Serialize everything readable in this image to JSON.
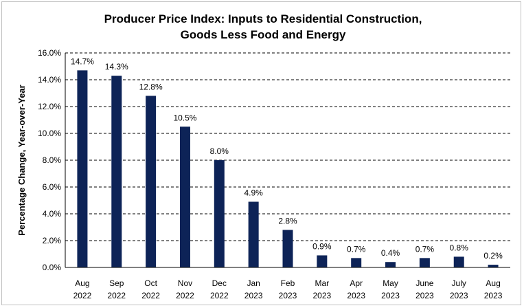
{
  "chart_data": {
    "type": "bar",
    "title": "Producer Price Index: Inputs to Residential Construction,",
    "subtitle": "Goods Less Food and Energy",
    "xlabel": "",
    "ylabel": "Percentage Change, Year-over-Year",
    "ylim": [
      0,
      16
    ],
    "y_ticks": [
      "0.0%",
      "2.0%",
      "4.0%",
      "6.0%",
      "8.0%",
      "10.0%",
      "12.0%",
      "14.0%",
      "16.0%"
    ],
    "grid": "horizontal-dashed",
    "legend": "none",
    "bar_color": "#0d2357",
    "categories": [
      [
        "Aug",
        "2022"
      ],
      [
        "Sep",
        "2022"
      ],
      [
        "Oct",
        "2022"
      ],
      [
        "Nov",
        "2022"
      ],
      [
        "Dec",
        "2022"
      ],
      [
        "Jan",
        "2023"
      ],
      [
        "Feb",
        "2023"
      ],
      [
        "Mar",
        "2023"
      ],
      [
        "Apr",
        "2023"
      ],
      [
        "May",
        "2023"
      ],
      [
        "June",
        "2023"
      ],
      [
        "July",
        "2023"
      ],
      [
        "Aug",
        "2023"
      ]
    ],
    "values": [
      14.7,
      14.3,
      12.8,
      10.5,
      8.0,
      4.9,
      2.8,
      0.9,
      0.7,
      0.4,
      0.7,
      0.8,
      0.2
    ],
    "data_labels": [
      "14.7%",
      "14.3%",
      "12.8%",
      "10.5%",
      "8.0%",
      "4.9%",
      "2.8%",
      "0.9%",
      "0.7%",
      "0.4%",
      "0.7%",
      "0.8%",
      "0.2%"
    ]
  }
}
